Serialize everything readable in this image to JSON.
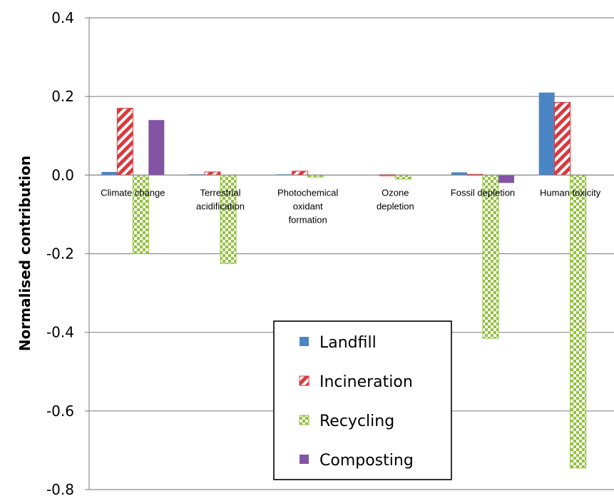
{
  "chart_data": {
    "type": "bar",
    "title": "",
    "xlabel": "",
    "ylabel": "Normalised contribution",
    "ylim": [
      -0.8,
      0.4
    ],
    "yticks": [
      0.4,
      0.2,
      0.0,
      -0.2,
      -0.4,
      -0.6,
      -0.8
    ],
    "ytick_labels": [
      "0.4",
      "0.2",
      "0.0",
      "-0.2",
      "-0.4",
      "-0.6",
      "-0.8"
    ],
    "grid": true,
    "legend_position": "bottom-center",
    "categories": [
      [
        "Climate change"
      ],
      [
        "Terrestrial",
        "acidification"
      ],
      [
        "Photochemical",
        "oxidant",
        "formation"
      ],
      [
        "Ozone",
        "depletion"
      ],
      [
        "Fossil depletion"
      ],
      [
        "Human toxicity"
      ]
    ],
    "series": [
      {
        "name": "Landfill",
        "color": "#4a86c5",
        "pattern": "solid",
        "values": [
          0.008,
          0.002,
          0.002,
          0.0,
          0.007,
          0.21
        ]
      },
      {
        "name": "Incineration",
        "color": "#d9393e",
        "pattern": "diagonal-stripes",
        "values": [
          0.17,
          0.008,
          0.01,
          0.001,
          0.002,
          0.185
        ]
      },
      {
        "name": "Recycling",
        "color": "#92c13e",
        "pattern": "checkered",
        "values": [
          -0.2,
          -0.225,
          -0.005,
          -0.01,
          -0.415,
          -0.745
        ]
      },
      {
        "name": "Composting",
        "color": "#8353a4",
        "pattern": "solid",
        "values": [
          0.14,
          0.0,
          0.0,
          0.0,
          -0.02,
          0.0
        ]
      }
    ]
  }
}
